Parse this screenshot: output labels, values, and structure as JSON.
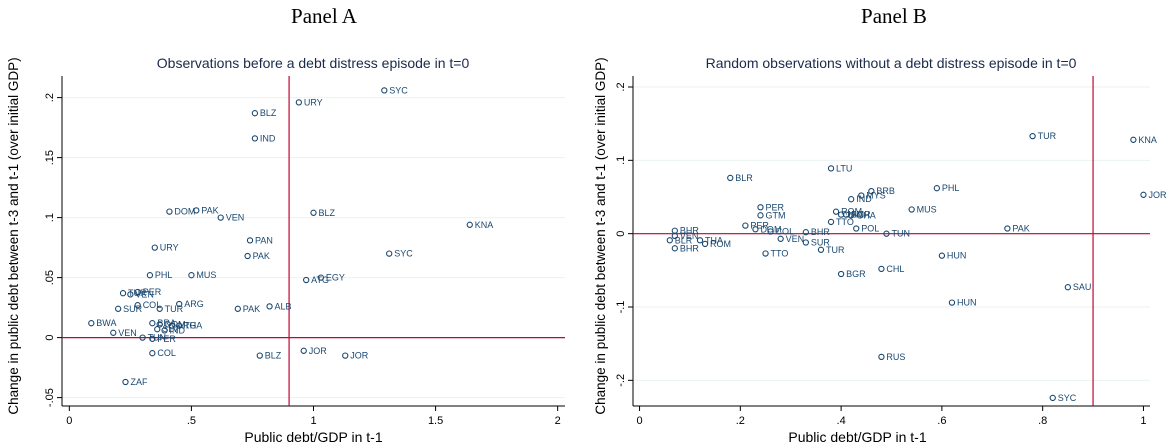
{
  "panels": [
    {
      "label": "Panel A"
    },
    {
      "label": "Panel B"
    }
  ],
  "colors": {
    "marker": "#1a476f",
    "refline": "#c10534",
    "grid": "#eaf2f3",
    "plot_bg": "#ffffff",
    "text": "#1a2a4a"
  },
  "chart_data": [
    {
      "type": "scatter",
      "title": "Observations before a debt distress episode in t=0",
      "xlabel": "Public debt/GDP in t-1",
      "ylabel": "Change in public debt between t-3 and t-1 (over initial GDP)",
      "xlim": [
        -0.03,
        2.03
      ],
      "ylim": [
        -0.057,
        0.218
      ],
      "xticks": [
        0,
        0.5,
        1,
        1.5,
        2
      ],
      "xticklabels": [
        "0",
        ".5",
        "1",
        "1.5",
        "2"
      ],
      "yticks": [
        -0.05,
        0,
        0.05,
        0.1,
        0.15,
        0.2
      ],
      "yticklabels": [
        "-.05",
        "0",
        ".05",
        ".1",
        ".15",
        ".2"
      ],
      "grid": true,
      "vline": 0.9,
      "hline": 0,
      "points": [
        {
          "x": 1.29,
          "y": 0.206,
          "label": "SYC"
        },
        {
          "x": 0.94,
          "y": 0.196,
          "label": "URY"
        },
        {
          "x": 0.76,
          "y": 0.187,
          "label": "BLZ"
        },
        {
          "x": 0.76,
          "y": 0.166,
          "label": "IND"
        },
        {
          "x": 0.41,
          "y": 0.105,
          "label": "DOM"
        },
        {
          "x": 0.52,
          "y": 0.106,
          "label": "PAK"
        },
        {
          "x": 0.62,
          "y": 0.1,
          "label": "VEN"
        },
        {
          "x": 1.0,
          "y": 0.104,
          "label": "BLZ"
        },
        {
          "x": 1.64,
          "y": 0.094,
          "label": "KNA"
        },
        {
          "x": 0.74,
          "y": 0.081,
          "label": "PAN"
        },
        {
          "x": 0.35,
          "y": 0.075,
          "label": "URY"
        },
        {
          "x": 0.73,
          "y": 0.068,
          "label": "PAK"
        },
        {
          "x": 1.31,
          "y": 0.07,
          "label": "SYC"
        },
        {
          "x": 0.33,
          "y": 0.052,
          "label": "PHL"
        },
        {
          "x": 0.5,
          "y": 0.052,
          "label": "MUS"
        },
        {
          "x": 1.03,
          "y": 0.05,
          "label": "EGY"
        },
        {
          "x": 0.97,
          "y": 0.048,
          "label": "ATG"
        },
        {
          "x": 0.28,
          "y": 0.038,
          "label": "PER"
        },
        {
          "x": 0.22,
          "y": 0.037,
          "label": "TUR"
        },
        {
          "x": 0.25,
          "y": 0.036,
          "label": "VEN"
        },
        {
          "x": 0.28,
          "y": 0.027,
          "label": "COL"
        },
        {
          "x": 0.45,
          "y": 0.028,
          "label": "ARG"
        },
        {
          "x": 0.82,
          "y": 0.026,
          "label": "ALB"
        },
        {
          "x": 0.2,
          "y": 0.024,
          "label": "SUR"
        },
        {
          "x": 0.37,
          "y": 0.024,
          "label": "TUR"
        },
        {
          "x": 0.69,
          "y": 0.024,
          "label": "PAK"
        },
        {
          "x": 0.09,
          "y": 0.012,
          "label": "BWA"
        },
        {
          "x": 0.34,
          "y": 0.012,
          "label": "BRA"
        },
        {
          "x": 0.37,
          "y": 0.011,
          "label": "DOM"
        },
        {
          "x": 0.42,
          "y": 0.01,
          "label": "ARG"
        },
        {
          "x": 0.45,
          "y": 0.01,
          "label": "THA"
        },
        {
          "x": 0.36,
          "y": 0.007,
          "label": "SLV"
        },
        {
          "x": 0.39,
          "y": 0.006,
          "label": "IND"
        },
        {
          "x": 0.18,
          "y": 0.004,
          "label": "VEN"
        },
        {
          "x": 0.3,
          "y": 0.0,
          "label": "TUN"
        },
        {
          "x": 0.34,
          "y": -0.001,
          "label": "PER"
        },
        {
          "x": 0.34,
          "y": -0.013,
          "label": "COL"
        },
        {
          "x": 0.78,
          "y": -0.015,
          "label": "BLZ"
        },
        {
          "x": 0.96,
          "y": -0.011,
          "label": "JOR"
        },
        {
          "x": 1.13,
          "y": -0.015,
          "label": "JOR"
        },
        {
          "x": 0.23,
          "y": -0.037,
          "label": "ZAF"
        }
      ]
    },
    {
      "type": "scatter",
      "title": "Random observations without a debt distress episode in t=0",
      "xlabel": "Public debt/GDP in t-1",
      "ylabel": "Change in public debt between t-3 and t-1 (over initial GDP)",
      "xlim": [
        -0.013,
        1.013
      ],
      "ylim": [
        -0.235,
        0.215
      ],
      "xticks": [
        0,
        0.2,
        0.4,
        0.6,
        0.8,
        1
      ],
      "xticklabels": [
        "0",
        ".2",
        ".4",
        ".6",
        ".8",
        "1"
      ],
      "yticks": [
        -0.2,
        -0.1,
        0,
        0.1,
        0.2
      ],
      "yticklabels": [
        "-.2",
        "-.1",
        "0",
        ".1",
        ".2"
      ],
      "grid": true,
      "vline": 0.9,
      "hline": 0,
      "points": [
        {
          "x": 0.78,
          "y": 0.133,
          "label": "TUR"
        },
        {
          "x": 0.98,
          "y": 0.128,
          "label": "KNA"
        },
        {
          "x": 0.38,
          "y": 0.089,
          "label": "LTU"
        },
        {
          "x": 0.18,
          "y": 0.076,
          "label": "BLR"
        },
        {
          "x": 0.59,
          "y": 0.062,
          "label": "PHL"
        },
        {
          "x": 0.46,
          "y": 0.058,
          "label": "BRB"
        },
        {
          "x": 0.44,
          "y": 0.052,
          "label": "MYS"
        },
        {
          "x": 1.0,
          "y": 0.053,
          "label": "JOR"
        },
        {
          "x": 0.42,
          "y": 0.047,
          "label": "IND"
        },
        {
          "x": 0.24,
          "y": 0.036,
          "label": "PER"
        },
        {
          "x": 0.54,
          "y": 0.033,
          "label": "MUS"
        },
        {
          "x": 0.39,
          "y": 0.03,
          "label": "ROM"
        },
        {
          "x": 0.24,
          "y": 0.025,
          "label": "GTM"
        },
        {
          "x": 0.4,
          "y": 0.026,
          "label": "JAM"
        },
        {
          "x": 0.41,
          "y": 0.026,
          "label": "BGR"
        },
        {
          "x": 0.42,
          "y": 0.025,
          "label": "GHA"
        },
        {
          "x": 0.38,
          "y": 0.016,
          "label": "TTO"
        },
        {
          "x": 0.21,
          "y": 0.011,
          "label": "PER"
        },
        {
          "x": 0.73,
          "y": 0.007,
          "label": "PAK"
        },
        {
          "x": 0.23,
          "y": 0.006,
          "label": "DOM"
        },
        {
          "x": 0.43,
          "y": 0.007,
          "label": "POL"
        },
        {
          "x": 0.26,
          "y": 0.003,
          "label": "COL"
        },
        {
          "x": 0.33,
          "y": 0.002,
          "label": "BHR"
        },
        {
          "x": 0.49,
          "y": 0.0,
          "label": "TUN"
        },
        {
          "x": 0.07,
          "y": 0.004,
          "label": "BHR"
        },
        {
          "x": 0.07,
          "y": -0.003,
          "label": "VEN"
        },
        {
          "x": 0.06,
          "y": -0.009,
          "label": "BLR"
        },
        {
          "x": 0.12,
          "y": -0.009,
          "label": "THA"
        },
        {
          "x": 0.13,
          "y": -0.014,
          "label": "ROM"
        },
        {
          "x": 0.28,
          "y": -0.007,
          "label": "VEN"
        },
        {
          "x": 0.33,
          "y": -0.012,
          "label": "SUR"
        },
        {
          "x": 0.07,
          "y": -0.02,
          "label": "BHR"
        },
        {
          "x": 0.25,
          "y": -0.027,
          "label": "TTO"
        },
        {
          "x": 0.36,
          "y": -0.022,
          "label": "TUR"
        },
        {
          "x": 0.6,
          "y": -0.03,
          "label": "HUN"
        },
        {
          "x": 0.48,
          "y": -0.048,
          "label": "CHL"
        },
        {
          "x": 0.4,
          "y": -0.055,
          "label": "BGR"
        },
        {
          "x": 0.85,
          "y": -0.073,
          "label": "SAU"
        },
        {
          "x": 0.62,
          "y": -0.094,
          "label": "HUN"
        },
        {
          "x": 0.48,
          "y": -0.168,
          "label": "RUS"
        },
        {
          "x": 0.82,
          "y": -0.224,
          "label": "SYC"
        }
      ]
    }
  ]
}
